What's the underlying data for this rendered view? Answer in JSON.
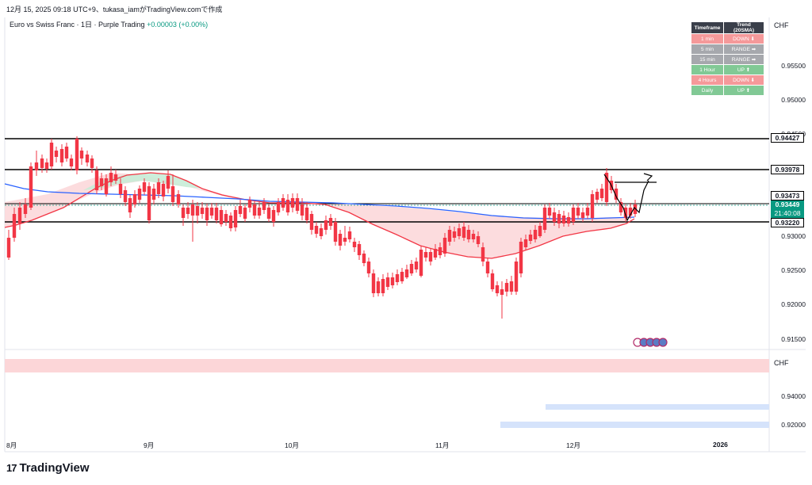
{
  "header": {
    "timestamp_line": "12月 15, 2025 09:18 UTC+9、tukasa_iamがTradingView.comで作成"
  },
  "legend": {
    "symbol": "Euro vs Swiss Franc · 1日 · Purple Trading",
    "change": "+0.00003 (+0.00%)"
  },
  "currency": "CHF",
  "trend_table": {
    "headers": [
      "Timeframe",
      "Trend (20SMA)"
    ],
    "rows": [
      {
        "timeframe": "1 min",
        "trend": "DOWN",
        "arrow": "⬇",
        "color": "#f5999a"
      },
      {
        "timeframe": "5 min",
        "trend": "RANGE",
        "arrow": "➡",
        "color": "#a6a8ad"
      },
      {
        "timeframe": "15 min",
        "trend": "RANGE",
        "arrow": "➡",
        "color": "#a6a8ad"
      },
      {
        "timeframe": "1 Hour",
        "trend": "UP",
        "arrow": "⬆",
        "color": "#81c995"
      },
      {
        "timeframe": "4 Hours",
        "trend": "DOWN",
        "arrow": "⬇",
        "color": "#f5999a"
      },
      {
        "timeframe": "Daily",
        "trend": "UP",
        "arrow": "⬆",
        "color": "#81c995"
      }
    ]
  },
  "price_axis": {
    "ticks": [
      "0.95500",
      "0.95000",
      "0.94500",
      "0.93000",
      "0.92500",
      "0.92000",
      "0.91500"
    ]
  },
  "level_labels": {
    "l1": "0.94427",
    "l2": "0.93978",
    "l3": "0.93473",
    "l4": "0.93220",
    "current": "0.93449",
    "countdown": "21:40:08"
  },
  "sub_axis": {
    "ticks": [
      "0.94000",
      "0.92000"
    ]
  },
  "time_axis": {
    "labels": [
      "8月",
      "9月",
      "10月",
      "11月",
      "12月",
      "2026"
    ]
  },
  "colors": {
    "up": "#089981",
    "down": "#f23645",
    "ma_red": "#f23645",
    "ma_blue": "#2962ff",
    "fill_red": "#fcd6d8",
    "fill_green": "#c8ecd7"
  },
  "logo": {
    "text": "TradingView"
  }
}
